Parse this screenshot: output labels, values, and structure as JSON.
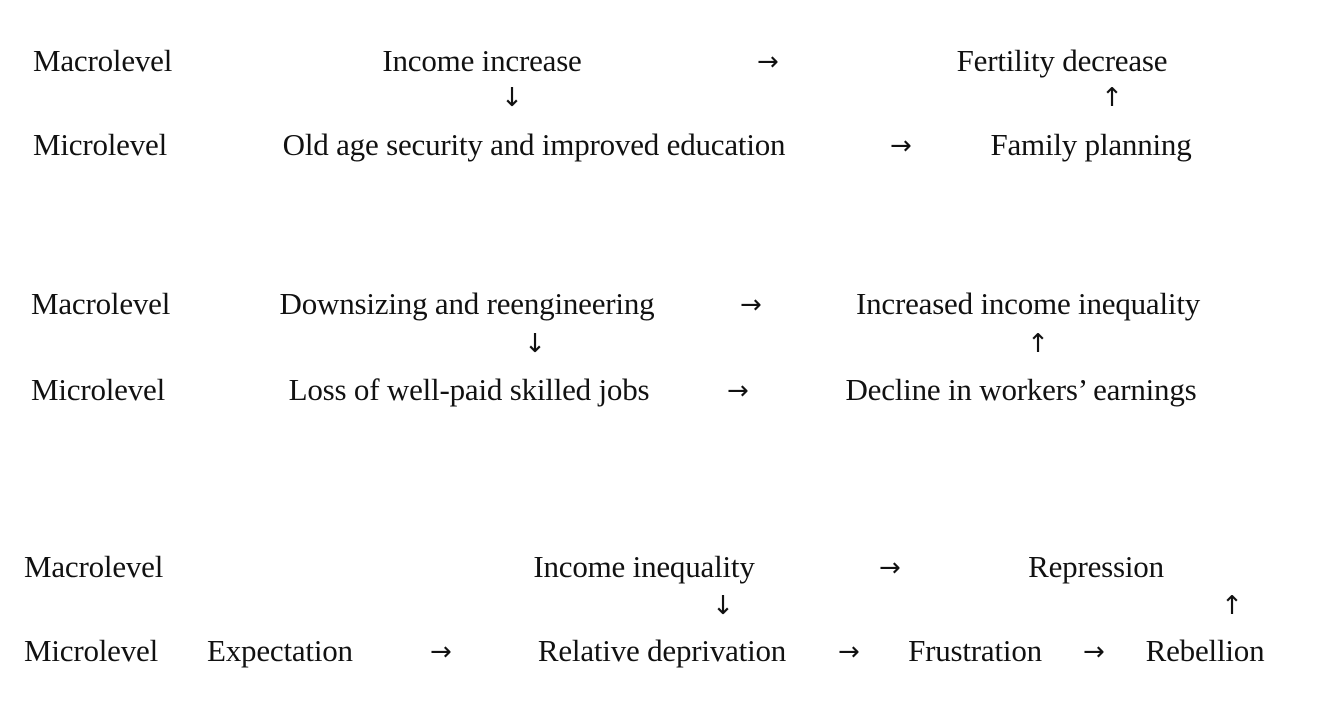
{
  "diagrams": [
    {
      "macro_label": "Macrolevel",
      "micro_label": "Microlevel",
      "macro_cause": "Income increase",
      "macro_effect": "Fertility decrease",
      "micro_cause": "Old age security and improved education",
      "micro_effect": "Family planning"
    },
    {
      "macro_label": "Macrolevel",
      "micro_label": "Microlevel",
      "macro_cause": "Downsizing and reengineering",
      "macro_effect": "Increased income inequality",
      "micro_cause": "Loss of well-paid skilled jobs",
      "micro_effect": "Decline in workers’ earnings"
    },
    {
      "macro_label": "Macrolevel",
      "micro_label": "Microlevel",
      "macro_cause": "Income inequality",
      "macro_effect": "Repression",
      "micro_start": "Expectation",
      "micro_mid1": "Relative deprivation",
      "micro_mid2": "Frustration",
      "micro_end": "Rebellion"
    }
  ],
  "arrows": {
    "right": "→",
    "down": "↓",
    "up": "↑"
  }
}
